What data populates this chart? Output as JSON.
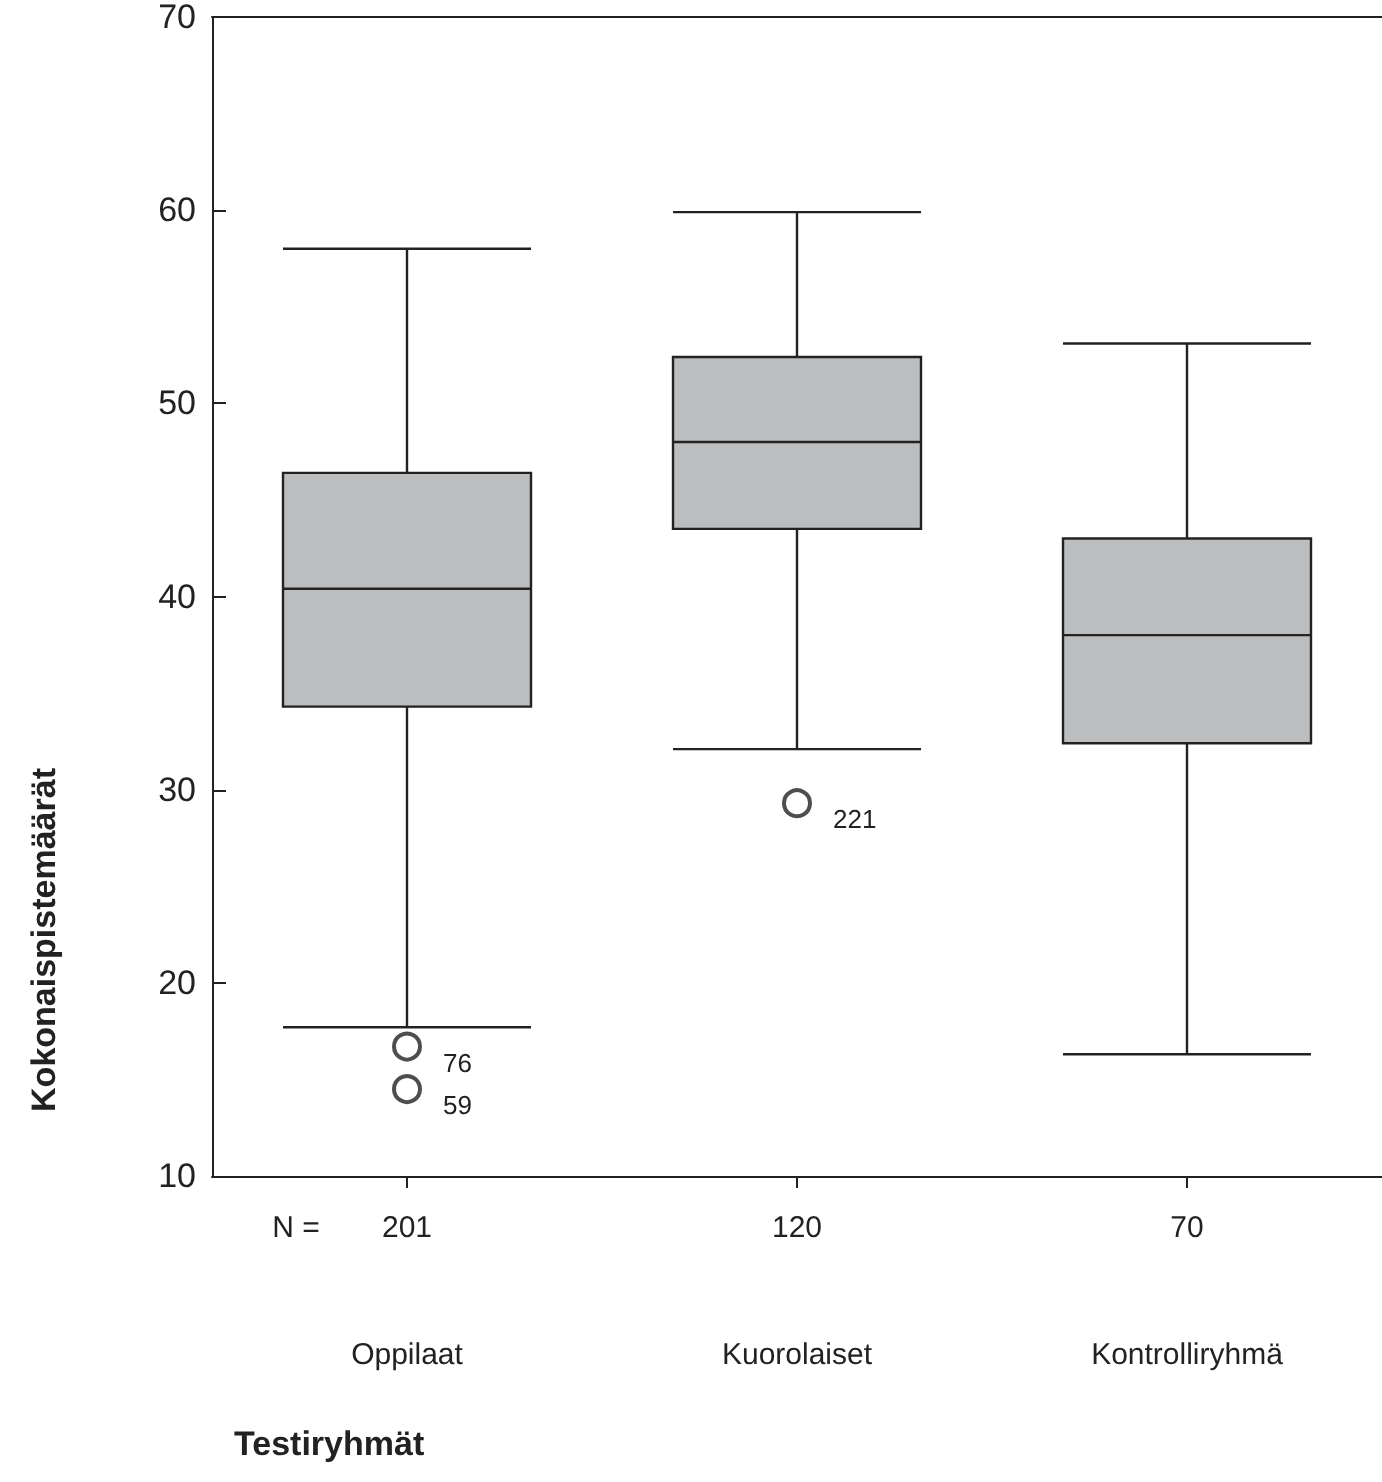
{
  "chart_data": {
    "type": "box",
    "xlabel": "Testiryhmät",
    "ylabel": "Kokonaispistemäärät",
    "categories": [
      "Oppilaat",
      "Kuorolaiset",
      "Kontrolliryhmä"
    ],
    "boxes": [
      {
        "low": 17.7,
        "q1": 34.3,
        "median": 40.4,
        "q3": 46.4,
        "high": 58.0,
        "outliers": [
          16.7,
          14.5
        ]
      },
      {
        "low": 32.1,
        "q1": 43.5,
        "median": 48.0,
        "q3": 52.4,
        "high": 59.9,
        "outliers": [
          29.3
        ]
      },
      {
        "low": 16.3,
        "q1": 32.4,
        "median": 38.0,
        "q3": 43.0,
        "high": 53.1
      }
    ],
    "color": "#bcbdbf",
    "ylim": [
      10,
      70
    ],
    "yticks": [
      10,
      20,
      30,
      40,
      50,
      60,
      70
    ],
    "annotations": [
      "76",
      "59",
      "221",
      "N =",
      "201",
      "120",
      "70"
    ],
    "grid": false
  }
}
